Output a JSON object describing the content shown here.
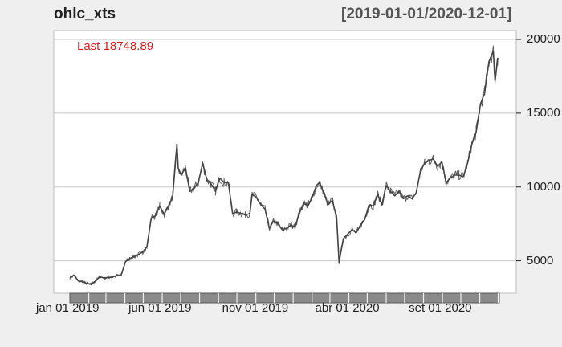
{
  "header": {
    "title": "ohlc_xts",
    "date_range": "[2019-01-01/2020-12-01]"
  },
  "annotation": {
    "last_label": "Last 18748.89",
    "color": "#e41a1c"
  },
  "colors": {
    "background": "#efefef",
    "plot_background": "#ffffff",
    "series": "#444444",
    "grid": "#c8c8c8",
    "timeline_bar": "#8a8a8a"
  },
  "chart_data": {
    "type": "line",
    "title": "ohlc_xts",
    "subtitle": "[2019-01-01/2020-12-01]",
    "xlabel": "",
    "ylabel": "",
    "x_tick_labels": [
      "jan 01 2019",
      "jun 01 2019",
      "nov 01 2019",
      "abr 01 2020",
      "set 01 2020"
    ],
    "x_tick_dates": [
      "2019-01-01",
      "2019-06-01",
      "2019-11-01",
      "2020-04-01",
      "2020-09-01"
    ],
    "y_ticks": [
      5000,
      10000,
      15000,
      20000
    ],
    "y_tick_labels": [
      "5000",
      "10000",
      "15000",
      "20000"
    ],
    "ylim": [
      2800,
      20600
    ],
    "xlim": [
      "2019-01-01",
      "2020-12-03"
    ],
    "grid": true,
    "y_axis_side": "right",
    "series": [
      {
        "x": [
          "2019-01-01",
          "2019-01-08",
          "2019-01-15",
          "2019-01-22",
          "2019-01-29",
          "2019-02-05",
          "2019-02-12",
          "2019-02-19",
          "2019-02-26",
          "2019-03-05",
          "2019-03-12",
          "2019-03-19",
          "2019-03-26",
          "2019-04-02",
          "2019-04-09",
          "2019-04-16",
          "2019-04-23",
          "2019-04-30",
          "2019-05-07",
          "2019-05-14",
          "2019-05-21",
          "2019-05-28",
          "2019-06-04",
          "2019-06-11",
          "2019-06-18",
          "2019-06-25",
          "2019-06-27",
          "2019-07-02",
          "2019-07-09",
          "2019-07-16",
          "2019-07-23",
          "2019-07-30",
          "2019-08-06",
          "2019-08-13",
          "2019-08-20",
          "2019-08-27",
          "2019-09-03",
          "2019-09-10",
          "2019-09-17",
          "2019-09-24",
          "2019-10-01",
          "2019-10-08",
          "2019-10-15",
          "2019-10-22",
          "2019-10-26",
          "2019-11-02",
          "2019-11-09",
          "2019-11-16",
          "2019-11-23",
          "2019-11-30",
          "2019-12-07",
          "2019-12-14",
          "2019-12-21",
          "2019-12-28",
          "2020-01-04",
          "2020-01-11",
          "2020-01-18",
          "2020-01-25",
          "2020-02-01",
          "2020-02-08",
          "2020-02-13",
          "2020-02-20",
          "2020-02-27",
          "2020-03-05",
          "2020-03-12",
          "2020-03-16",
          "2020-03-23",
          "2020-03-30",
          "2020-04-06",
          "2020-04-13",
          "2020-04-20",
          "2020-04-27",
          "2020-05-04",
          "2020-05-11",
          "2020-05-18",
          "2020-05-25",
          "2020-06-01",
          "2020-06-08",
          "2020-06-15",
          "2020-06-22",
          "2020-06-29",
          "2020-07-06",
          "2020-07-13",
          "2020-07-20",
          "2020-07-27",
          "2020-08-03",
          "2020-08-10",
          "2020-08-17",
          "2020-08-24",
          "2020-08-31",
          "2020-09-07",
          "2020-09-14",
          "2020-09-21",
          "2020-09-28",
          "2020-10-05",
          "2020-10-12",
          "2020-10-19",
          "2020-10-26",
          "2020-11-02",
          "2020-11-09",
          "2020-11-16",
          "2020-11-23",
          "2020-11-26",
          "2020-11-30",
          "2020-12-01"
        ],
        "y": [
          3850,
          4020,
          3620,
          3580,
          3450,
          3400,
          3630,
          3920,
          3830,
          3870,
          3900,
          4000,
          4030,
          4950,
          5150,
          5280,
          5420,
          5590,
          5950,
          7900,
          8050,
          8700,
          8150,
          8700,
          9300,
          12900,
          11300,
          10800,
          11300,
          9700,
          9900,
          10300,
          11600,
          10500,
          10200,
          9700,
          10600,
          10300,
          10300,
          8200,
          8300,
          8200,
          8100,
          8200,
          9500,
          9300,
          8800,
          8500,
          7200,
          7700,
          7500,
          7100,
          7200,
          7400,
          7300,
          8200,
          8900,
          8700,
          9300,
          10100,
          10300,
          9600,
          8800,
          9100,
          7900,
          4900,
          6500,
          6800,
          7100,
          6900,
          7400,
          7800,
          8800,
          8700,
          9500,
          8800,
          10100,
          9700,
          9400,
          9700,
          9200,
          9400,
          9200,
          9600,
          11100,
          11600,
          11800,
          11900,
          11400,
          11700,
          10300,
          10600,
          10800,
          10800,
          10700,
          11600,
          12900,
          13700,
          15600,
          16400,
          18500,
          19200,
          17200,
          18700,
          18748.89
        ]
      }
    ]
  }
}
